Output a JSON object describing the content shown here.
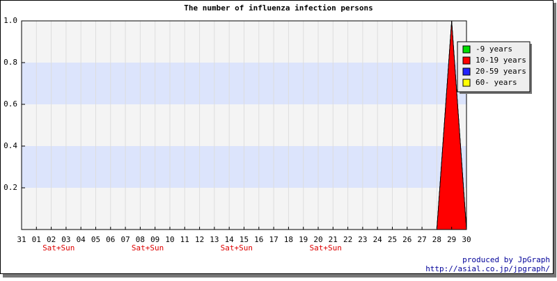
{
  "chart_data": {
    "type": "area",
    "stacked": true,
    "title": "The number of influenza infection persons",
    "categories": [
      "31",
      "01",
      "02",
      "03",
      "04",
      "05",
      "06",
      "07",
      "08",
      "09",
      "10",
      "11",
      "12",
      "13",
      "14",
      "15",
      "16",
      "17",
      "18",
      "19",
      "20",
      "21",
      "22",
      "23",
      "24",
      "25",
      "26",
      "27",
      "28",
      "29",
      "30"
    ],
    "series": [
      {
        "name": "-9 years",
        "color": "#00dd00",
        "values": [
          0,
          0,
          0,
          0,
          0,
          0,
          0,
          0,
          0,
          0,
          0,
          0,
          0,
          0,
          0,
          0,
          0,
          0,
          0,
          0,
          0,
          0,
          0,
          0,
          0,
          0,
          0,
          0,
          0,
          0,
          0
        ]
      },
      {
        "name": "10-19 years",
        "color": "#ff0000",
        "values": [
          0,
          0,
          0,
          0,
          0,
          0,
          0,
          0,
          0,
          0,
          0,
          0,
          0,
          0,
          0,
          0,
          0,
          0,
          0,
          0,
          0,
          0,
          0,
          0,
          0,
          0,
          0,
          0,
          0,
          1,
          0
        ]
      },
      {
        "name": "20-59 years",
        "color": "#2222ff",
        "values": [
          0,
          0,
          0,
          0,
          0,
          0,
          0,
          0,
          0,
          0,
          0,
          0,
          0,
          0,
          0,
          0,
          0,
          0,
          0,
          0,
          0,
          0,
          0,
          0,
          0,
          0,
          0,
          0,
          0,
          0,
          0
        ]
      },
      {
        "name": "60- years",
        "color": "#ffff00",
        "values": [
          0,
          0,
          0,
          0,
          0,
          0,
          0,
          0,
          0,
          0,
          0,
          0,
          0,
          0,
          0,
          0,
          0,
          0,
          0,
          0,
          0,
          0,
          0,
          0,
          0,
          0,
          0,
          0,
          0,
          0,
          0
        ]
      }
    ],
    "ylim": [
      0,
      1
    ],
    "yticks": [
      0.2,
      0.4,
      0.6,
      {
        "value": 0.8,
        "label": "0.8"
      },
      {
        "value": 1,
        "label": "1.0"
      }
    ],
    "grid": true,
    "legend_position": "top-right",
    "weekends": [
      {
        "label": "Sat+Sun",
        "days": [
          "02",
          "03"
        ]
      },
      {
        "label": "Sat+Sun",
        "days": [
          "08",
          "09"
        ]
      },
      {
        "label": "Sat+Sun",
        "days": [
          "14",
          "15"
        ]
      },
      {
        "label": "Sat+Sun",
        "days": [
          "20",
          "21"
        ]
      }
    ],
    "credits": [
      "produced by JpGraph",
      "http://asial.co.jp/jpgraph/"
    ]
  }
}
